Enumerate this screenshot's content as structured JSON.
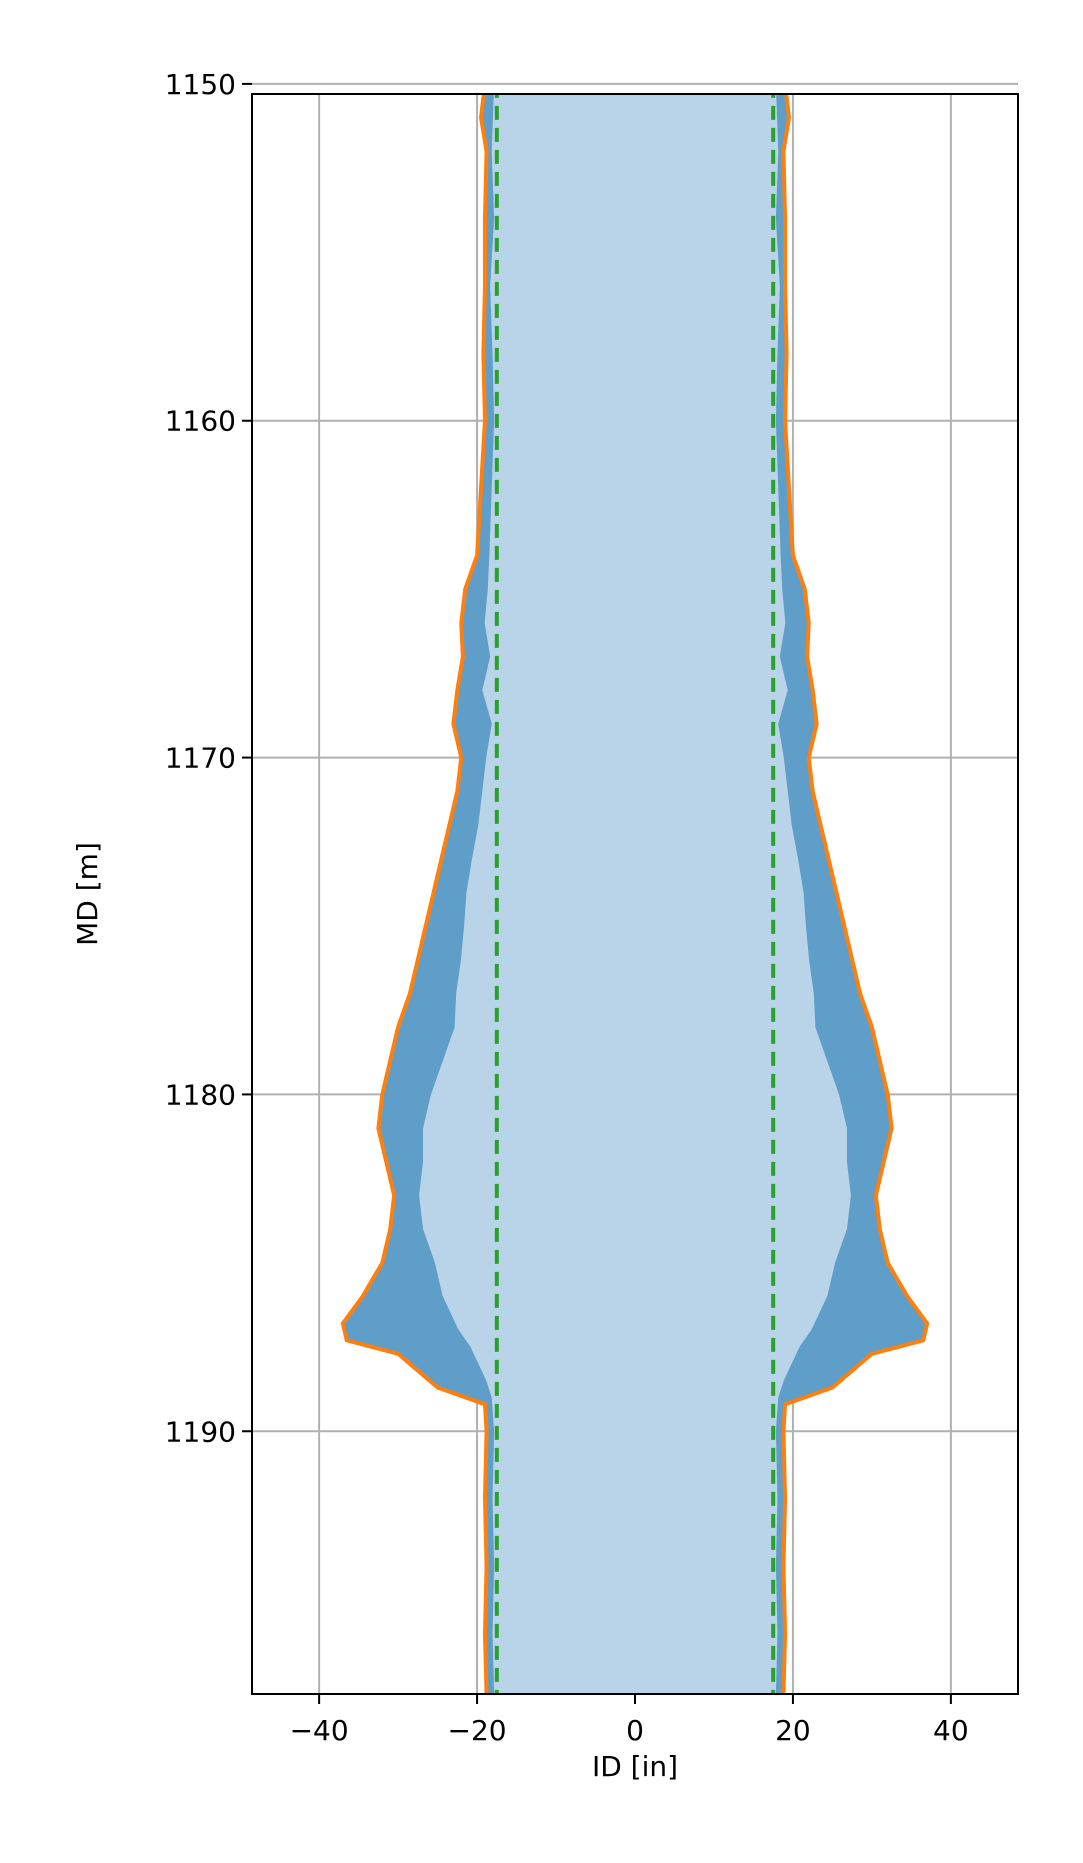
{
  "chart_data": {
    "type": "area",
    "xlabel": "ID [in]",
    "ylabel": "MD [m]",
    "xlim": [
      -48.5,
      48.5
    ],
    "ylim": [
      1150.3,
      1197.8
    ],
    "y_inverted": true,
    "grid": true,
    "xticks": [
      {
        "value": -40,
        "label": "−40"
      },
      {
        "value": -20,
        "label": "−20"
      },
      {
        "value": 0,
        "label": "0"
      },
      {
        "value": 20,
        "label": "20"
      },
      {
        "value": 40,
        "label": "40"
      }
    ],
    "yticks": [
      {
        "value": 1150,
        "label": "1150"
      },
      {
        "value": 1160,
        "label": "1160"
      },
      {
        "value": 1170,
        "label": "1170"
      },
      {
        "value": 1180,
        "label": "1180"
      },
      {
        "value": 1190,
        "label": "1190"
      }
    ],
    "colors": {
      "inner_fill": "#b9d4e8",
      "annulus_fill": "#5f9ec8",
      "inner_line": "#5f9ec8",
      "outer_line": "#ff7f0e",
      "nominal_line": "#2ca02c",
      "grid": "#b0b0b0"
    },
    "series": [
      {
        "style": "nominal-dashed",
        "x": [
          17.5,
          17.5
        ],
        "y": [
          1150.0,
          1197.8
        ]
      },
      {
        "style": "inner-radius",
        "y": [
          1150.0,
          1152,
          1154,
          1156,
          1158,
          1160,
          1162,
          1164,
          1165,
          1166,
          1167,
          1168,
          1169,
          1170,
          1171,
          1172,
          1173,
          1174,
          1175,
          1176,
          1177,
          1178,
          1179,
          1180,
          1181,
          1182,
          1183,
          1184,
          1185,
          1186,
          1187,
          1187.5,
          1188,
          1188.5,
          1189,
          1190,
          1192,
          1194,
          1196,
          1197.8
        ],
        "x": [
          18.0,
          18.3,
          18.0,
          18.5,
          18.2,
          18.0,
          18.3,
          18.6,
          18.8,
          19.2,
          18.5,
          19.5,
          18.3,
          19.0,
          19.5,
          20.0,
          20.8,
          21.5,
          21.8,
          22.2,
          22.8,
          23.0,
          24.5,
          26.0,
          27.0,
          27.0,
          27.5,
          27.0,
          25.5,
          24.5,
          22.5,
          21.0,
          20.0,
          19.0,
          18.3,
          18.0,
          18.2,
          18.0,
          18.2,
          18.0
        ]
      },
      {
        "style": "outer-radius",
        "y": [
          1150.0,
          1151,
          1152,
          1154,
          1156,
          1158,
          1160,
          1162,
          1164,
          1165,
          1166,
          1167,
          1168,
          1169,
          1170,
          1171,
          1172,
          1173,
          1174,
          1175,
          1176,
          1177,
          1178,
          1179,
          1180,
          1181,
          1182,
          1183,
          1184,
          1185,
          1186,
          1186.8,
          1187.3,
          1187.7,
          1188.2,
          1188.7,
          1189.2,
          1190,
          1192,
          1194,
          1196,
          1197.8
        ],
        "x": [
          19.0,
          19.5,
          18.8,
          19.0,
          19.0,
          19.2,
          19.0,
          19.5,
          20.0,
          21.5,
          22.0,
          21.8,
          22.5,
          23.0,
          22.0,
          22.5,
          23.5,
          24.5,
          25.5,
          26.5,
          27.5,
          28.5,
          30.0,
          31.0,
          32.0,
          32.5,
          31.5,
          30.5,
          31.0,
          32.0,
          34.5,
          37.0,
          36.5,
          30.0,
          27.5,
          25.0,
          19.0,
          18.8,
          19.0,
          18.8,
          19.0,
          18.8
        ]
      }
    ]
  }
}
